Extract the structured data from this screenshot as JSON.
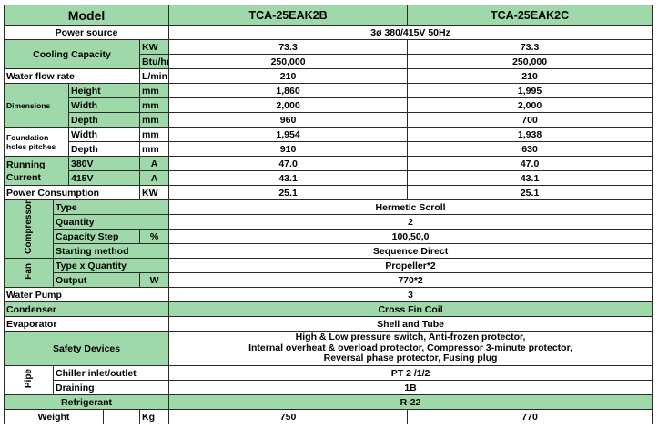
{
  "header": {
    "model_label": "Model",
    "models": [
      "TCA-25EAK2B",
      "TCA-25EAK2C"
    ]
  },
  "power_source": {
    "label": "Power source",
    "value": "3ø 380/415V 50Hz"
  },
  "cooling_capacity": {
    "label": "Cooling Capacity",
    "kw": {
      "unit": "KW",
      "values": [
        "73.3",
        "73.3"
      ]
    },
    "btu": {
      "unit": "Btu/hr",
      "values": [
        "250,000",
        "250,000"
      ]
    }
  },
  "water_flow_rate": {
    "label": "Water flow rate",
    "unit": "L/min",
    "values": [
      "210",
      "210"
    ]
  },
  "dimensions": {
    "label": "Dimensions",
    "height": {
      "label": "Height",
      "unit": "mm",
      "values": [
        "1,860",
        "1,995"
      ]
    },
    "width": {
      "label": "Width",
      "unit": "mm",
      "values": [
        "2,000",
        "2,000"
      ]
    },
    "depth": {
      "label": "Depth",
      "unit": "mm",
      "values": [
        "960",
        "700"
      ]
    }
  },
  "foundation": {
    "label_line1": "Foundation",
    "label_line2": "holes pitches",
    "width": {
      "label": "Width",
      "unit": "mm",
      "values": [
        "1,954",
        "1,938"
      ]
    },
    "depth": {
      "label": "Depth",
      "unit": "mm",
      "values": [
        "910",
        "630"
      ]
    }
  },
  "running_current": {
    "label_line1": "Running",
    "label_line2": "Current",
    "v380": {
      "label": "380V",
      "unit": "A",
      "values": [
        "47.0",
        "47.0"
      ]
    },
    "v415": {
      "label": "415V",
      "unit": "A",
      "values": [
        "43.1",
        "43.1"
      ]
    }
  },
  "power_consumption": {
    "label": "Power Consumption",
    "unit": "KW",
    "values": [
      "25.1",
      "25.1"
    ]
  },
  "compressor": {
    "label": "Compressor",
    "type": {
      "label": "Type",
      "value": "Hermetic Scroll"
    },
    "quantity": {
      "label": "Quantity",
      "value": "2"
    },
    "capacity_step": {
      "label": "Capacity Step",
      "unit": "%",
      "value": "100,50,0"
    },
    "starting_method": {
      "label": "Starting method",
      "value": "Sequence Direct"
    }
  },
  "fan": {
    "label": "Fan",
    "type_qty": {
      "label": "Type x Quantity",
      "value": "Propeller*2"
    },
    "output": {
      "label": "Output",
      "unit": "W",
      "value": "770*2"
    }
  },
  "water_pump": {
    "label": "Water Pump",
    "value": "3"
  },
  "condenser": {
    "label": "Condenser",
    "value": "Cross Fin Coil"
  },
  "evaporator": {
    "label": "Evaporator",
    "value": "Shell and Tube"
  },
  "safety_devices": {
    "label": "Safety Devices",
    "lines": [
      "High & Low pressure switch, Anti-frozen protector,",
      "Internal overheat & overload protector, Compressor 3-minute protector,",
      "Reversal phase protector, Fusing plug"
    ]
  },
  "pipe": {
    "label": "Pipe",
    "chiller": {
      "label": "Chiller inlet/outlet",
      "value": "PT 2 /1/2"
    },
    "draining": {
      "label": "Draining",
      "value": "1B"
    }
  },
  "refrigerant": {
    "label": "Refrigerant",
    "value": "R-22"
  },
  "weight": {
    "label": "Weight",
    "unit": "Kg",
    "values": [
      "750",
      "770"
    ]
  },
  "colors": {
    "header_green": "#9fd8a9",
    "border": "#2a2a2a",
    "background": "#ffffff"
  }
}
